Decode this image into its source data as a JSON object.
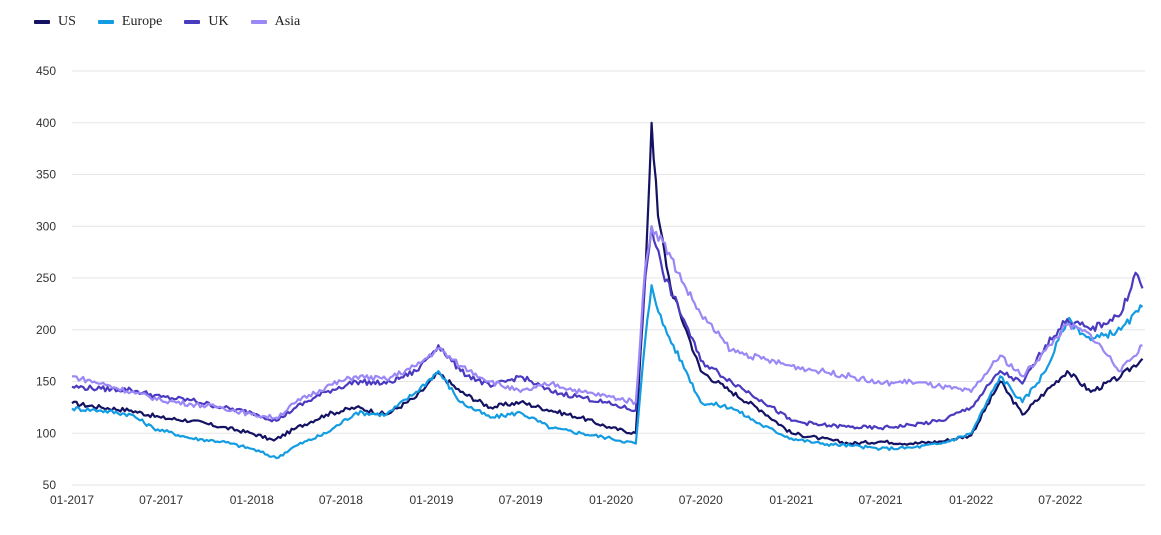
{
  "chart_data": {
    "type": "line",
    "title": "",
    "xlabel": "",
    "ylabel": "",
    "ylim": [
      50,
      450
    ],
    "yticks": [
      50,
      100,
      150,
      200,
      250,
      300,
      350,
      400,
      450
    ],
    "x_range": [
      "2017-01-01",
      "2022-12-20"
    ],
    "xticks": [
      {
        "date": "2017-01-01",
        "label": "01-2017"
      },
      {
        "date": "2017-07-01",
        "label": "07-2017"
      },
      {
        "date": "2018-01-01",
        "label": "01-2018"
      },
      {
        "date": "2018-07-01",
        "label": "07-2018"
      },
      {
        "date": "2019-01-01",
        "label": "01-2019"
      },
      {
        "date": "2019-07-01",
        "label": "07-2019"
      },
      {
        "date": "2020-01-01",
        "label": "01-2020"
      },
      {
        "date": "2020-07-01",
        "label": "07-2020"
      },
      {
        "date": "2021-01-01",
        "label": "01-2021"
      },
      {
        "date": "2021-07-01",
        "label": "07-2021"
      },
      {
        "date": "2022-01-01",
        "label": "01-2022"
      },
      {
        "date": "2022-07-01",
        "label": "07-2022"
      }
    ],
    "grid": "horizontal",
    "legend_position": "top-left",
    "series": [
      {
        "name": "US",
        "color": "#141263",
        "points": [
          [
            "2017-01-01",
            129
          ],
          [
            "2017-03-01",
            125
          ],
          [
            "2017-05-01",
            122
          ],
          [
            "2017-07-01",
            115
          ],
          [
            "2017-09-01",
            112
          ],
          [
            "2017-11-01",
            106
          ],
          [
            "2018-01-01",
            100
          ],
          [
            "2018-02-15",
            93
          ],
          [
            "2018-04-01",
            105
          ],
          [
            "2018-06-01",
            118
          ],
          [
            "2018-08-01",
            125
          ],
          [
            "2018-10-01",
            118
          ],
          [
            "2018-12-01",
            135
          ],
          [
            "2019-01-15",
            158
          ],
          [
            "2019-03-01",
            140
          ],
          [
            "2019-05-01",
            125
          ],
          [
            "2019-07-01",
            130
          ],
          [
            "2019-09-01",
            122
          ],
          [
            "2019-11-01",
            115
          ],
          [
            "2020-01-01",
            105
          ],
          [
            "2020-02-20",
            100
          ],
          [
            "2020-03-10",
            250
          ],
          [
            "2020-03-23",
            400
          ],
          [
            "2020-04-05",
            310
          ],
          [
            "2020-05-01",
            240
          ],
          [
            "2020-06-01",
            200
          ],
          [
            "2020-07-01",
            160
          ],
          [
            "2020-09-01",
            140
          ],
          [
            "2020-11-01",
            122
          ],
          [
            "2021-01-01",
            100
          ],
          [
            "2021-03-01",
            95
          ],
          [
            "2021-05-01",
            90
          ],
          [
            "2021-07-01",
            92
          ],
          [
            "2021-09-01",
            90
          ],
          [
            "2021-11-01",
            92
          ],
          [
            "2022-01-01",
            98
          ],
          [
            "2022-03-01",
            150
          ],
          [
            "2022-04-15",
            118
          ],
          [
            "2022-06-01",
            140
          ],
          [
            "2022-07-15",
            160
          ],
          [
            "2022-09-01",
            140
          ],
          [
            "2022-11-01",
            155
          ],
          [
            "2022-12-15",
            172
          ]
        ]
      },
      {
        "name": "Europe",
        "color": "#139ce1",
        "points": [
          [
            "2017-01-01",
            124
          ],
          [
            "2017-03-01",
            122
          ],
          [
            "2017-05-01",
            118
          ],
          [
            "2017-06-15",
            105
          ],
          [
            "2017-09-01",
            95
          ],
          [
            "2017-11-01",
            92
          ],
          [
            "2018-01-01",
            85
          ],
          [
            "2018-02-20",
            76
          ],
          [
            "2018-04-01",
            88
          ],
          [
            "2018-06-01",
            100
          ],
          [
            "2018-08-01",
            120
          ],
          [
            "2018-10-01",
            118
          ],
          [
            "2018-12-01",
            140
          ],
          [
            "2019-01-15",
            160
          ],
          [
            "2019-03-01",
            130
          ],
          [
            "2019-05-01",
            115
          ],
          [
            "2019-07-01",
            120
          ],
          [
            "2019-09-01",
            105
          ],
          [
            "2019-11-01",
            100
          ],
          [
            "2020-01-01",
            95
          ],
          [
            "2020-02-20",
            90
          ],
          [
            "2020-03-10",
            190
          ],
          [
            "2020-03-23",
            243
          ],
          [
            "2020-04-15",
            205
          ],
          [
            "2020-06-01",
            160
          ],
          [
            "2020-07-01",
            130
          ],
          [
            "2020-09-01",
            125
          ],
          [
            "2020-11-01",
            108
          ],
          [
            "2021-01-01",
            95
          ],
          [
            "2021-03-01",
            90
          ],
          [
            "2021-05-01",
            88
          ],
          [
            "2021-07-01",
            85
          ],
          [
            "2021-09-01",
            86
          ],
          [
            "2021-11-01",
            90
          ],
          [
            "2022-01-01",
            100
          ],
          [
            "2022-03-01",
            155
          ],
          [
            "2022-04-15",
            130
          ],
          [
            "2022-06-01",
            160
          ],
          [
            "2022-07-15",
            210
          ],
          [
            "2022-09-01",
            190
          ],
          [
            "2022-11-01",
            200
          ],
          [
            "2022-12-15",
            222
          ]
        ]
      },
      {
        "name": "UK",
        "color": "#4a3abf",
        "points": [
          [
            "2017-01-01",
            145
          ],
          [
            "2017-03-01",
            143
          ],
          [
            "2017-05-01",
            142
          ],
          [
            "2017-07-01",
            135
          ],
          [
            "2017-09-01",
            132
          ],
          [
            "2017-11-01",
            125
          ],
          [
            "2018-01-01",
            120
          ],
          [
            "2018-02-20",
            112
          ],
          [
            "2018-04-01",
            125
          ],
          [
            "2018-06-01",
            140
          ],
          [
            "2018-08-01",
            150
          ],
          [
            "2018-10-01",
            148
          ],
          [
            "2018-12-01",
            160
          ],
          [
            "2019-01-15",
            185
          ],
          [
            "2019-03-01",
            160
          ],
          [
            "2019-05-01",
            145
          ],
          [
            "2019-07-01",
            155
          ],
          [
            "2019-09-01",
            140
          ],
          [
            "2019-11-01",
            135
          ],
          [
            "2020-01-01",
            128
          ],
          [
            "2020-02-20",
            122
          ],
          [
            "2020-03-10",
            250
          ],
          [
            "2020-03-23",
            300
          ],
          [
            "2020-04-15",
            255
          ],
          [
            "2020-06-01",
            205
          ],
          [
            "2020-07-01",
            170
          ],
          [
            "2020-09-01",
            150
          ],
          [
            "2020-11-01",
            132
          ],
          [
            "2021-01-01",
            112
          ],
          [
            "2021-03-01",
            108
          ],
          [
            "2021-05-01",
            106
          ],
          [
            "2021-07-01",
            105
          ],
          [
            "2021-09-01",
            108
          ],
          [
            "2021-11-01",
            112
          ],
          [
            "2022-01-01",
            125
          ],
          [
            "2022-03-01",
            160
          ],
          [
            "2022-04-15",
            148
          ],
          [
            "2022-06-01",
            185
          ],
          [
            "2022-07-15",
            210
          ],
          [
            "2022-09-01",
            200
          ],
          [
            "2022-11-01",
            215
          ],
          [
            "2022-12-01",
            255
          ],
          [
            "2022-12-15",
            240
          ]
        ]
      },
      {
        "name": "Asia",
        "color": "#9b87f5",
        "points": [
          [
            "2017-01-01",
            155
          ],
          [
            "2017-03-01",
            148
          ],
          [
            "2017-05-01",
            140
          ],
          [
            "2017-07-01",
            132
          ],
          [
            "2017-09-01",
            128
          ],
          [
            "2017-11-01",
            125
          ],
          [
            "2018-01-01",
            118
          ],
          [
            "2018-02-20",
            115
          ],
          [
            "2018-04-01",
            130
          ],
          [
            "2018-06-01",
            145
          ],
          [
            "2018-08-01",
            155
          ],
          [
            "2018-10-01",
            152
          ],
          [
            "2018-12-01",
            165
          ],
          [
            "2019-01-15",
            182
          ],
          [
            "2019-03-01",
            165
          ],
          [
            "2019-05-01",
            150
          ],
          [
            "2019-07-01",
            140
          ],
          [
            "2019-09-01",
            148
          ],
          [
            "2019-11-01",
            140
          ],
          [
            "2020-01-01",
            135
          ],
          [
            "2020-02-20",
            130
          ],
          [
            "2020-03-10",
            260
          ],
          [
            "2020-03-23",
            300
          ],
          [
            "2020-04-15",
            285
          ],
          [
            "2020-06-01",
            240
          ],
          [
            "2020-07-01",
            215
          ],
          [
            "2020-09-01",
            180
          ],
          [
            "2020-11-01",
            172
          ],
          [
            "2021-01-01",
            165
          ],
          [
            "2021-03-01",
            160
          ],
          [
            "2021-05-01",
            155
          ],
          [
            "2021-07-01",
            148
          ],
          [
            "2021-09-01",
            150
          ],
          [
            "2021-11-01",
            145
          ],
          [
            "2022-01-01",
            140
          ],
          [
            "2022-03-01",
            175
          ],
          [
            "2022-04-15",
            155
          ],
          [
            "2022-06-01",
            180
          ],
          [
            "2022-07-15",
            205
          ],
          [
            "2022-09-01",
            195
          ],
          [
            "2022-11-01",
            160
          ],
          [
            "2022-12-15",
            185
          ]
        ]
      }
    ]
  }
}
